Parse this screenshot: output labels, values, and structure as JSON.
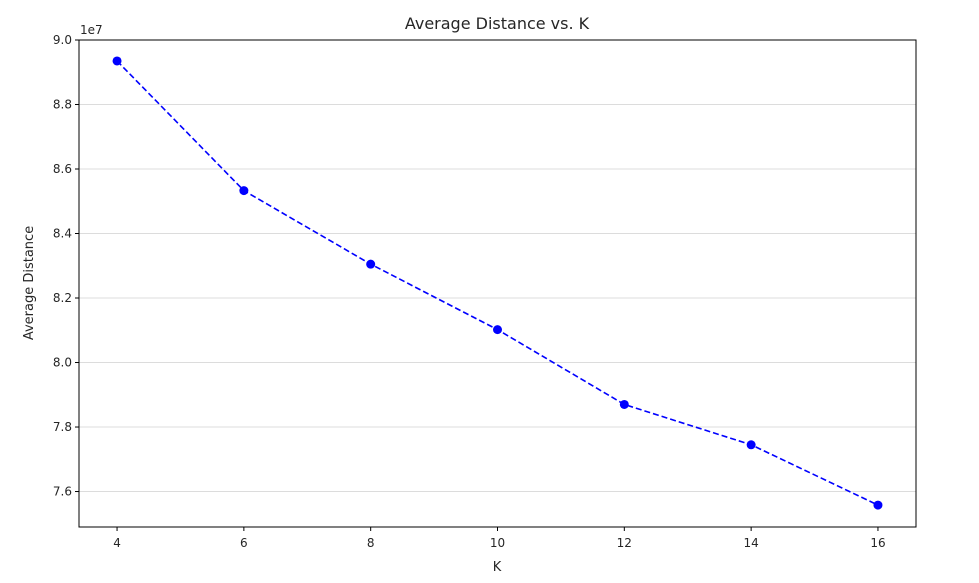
{
  "chart_data": {
    "type": "line",
    "title": "Average Distance vs. K",
    "xlabel": "K",
    "ylabel": "Average Distance",
    "y_offset_label": "1e7",
    "x": [
      4,
      6,
      8,
      10,
      12,
      14,
      16
    ],
    "series": [
      {
        "values": [
          8.935,
          8.533,
          8.305,
          8.102,
          7.87,
          7.745,
          7.558
        ],
        "color": "#0000ff",
        "line_style": "dashed",
        "marker": "circle"
      }
    ],
    "xticks": [
      4,
      6,
      8,
      10,
      12,
      14,
      16
    ],
    "xtick_labels": [
      "4",
      "6",
      "8",
      "10",
      "12",
      "14",
      "16"
    ],
    "yticks": [
      7.6,
      7.8,
      8.0,
      8.2,
      8.4,
      8.6,
      8.8,
      9.0
    ],
    "ytick_labels": [
      "7.6",
      "7.8",
      "8.0",
      "8.2",
      "8.4",
      "8.6",
      "8.8",
      "9.0"
    ],
    "xlim": [
      3.4,
      16.6
    ],
    "ylim": [
      7.49,
      9.0
    ],
    "grid": "horizontal"
  }
}
